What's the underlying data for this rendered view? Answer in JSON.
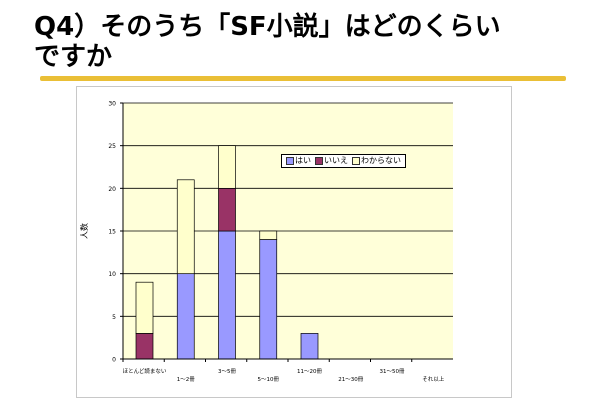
{
  "slide": {
    "title_line1": "Q4）そのうち「SF小説」はどのくらい",
    "title_line2": "ですか"
  },
  "chart_data": {
    "type": "bar",
    "stacked": true,
    "title": "",
    "xlabel": "",
    "ylabel": "人数",
    "ylim": [
      0,
      30
    ],
    "yticks": [
      0,
      5,
      10,
      15,
      20,
      25,
      30
    ],
    "grid": true,
    "legend_position": "top-right",
    "categories": [
      "ほとんど読まない",
      "1～2冊",
      "3～5冊",
      "5～10冊",
      "11～20冊",
      "21～30冊",
      "31～50冊",
      "それ以上"
    ],
    "series": [
      {
        "name": "はい",
        "color": "#9999ff",
        "values": [
          0,
          10,
          15,
          14,
          3,
          0,
          0,
          0
        ]
      },
      {
        "name": "いいえ",
        "color": "#993366",
        "values": [
          3,
          0,
          5,
          0,
          0,
          0,
          0,
          0
        ]
      },
      {
        "name": "わからない",
        "color": "#ffffcc",
        "values": [
          6,
          11,
          5,
          1,
          0,
          0,
          0,
          0
        ]
      }
    ],
    "colors": {
      "plot_background": "#ffffd9",
      "gridline": "#000000"
    }
  }
}
